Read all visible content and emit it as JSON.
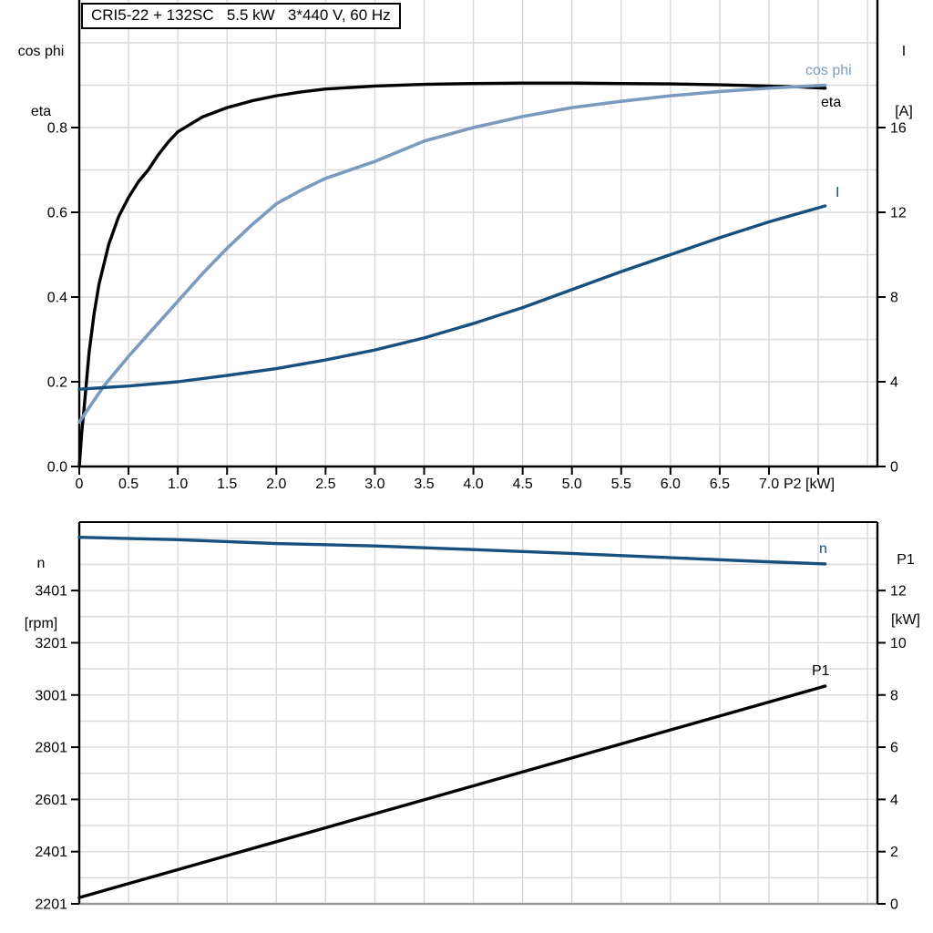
{
  "title": "CRI5-22 + 132SC   5.5 kW   3*440 V, 60 Hz",
  "colors": {
    "eta_curve": "#000000",
    "cos_phi_curve": "#7A9BBE",
    "current_curve": "#17507F",
    "speed_curve": "#17507F",
    "p1_curve": "#000000",
    "grid": "#d9d9d9",
    "axis": "#000000",
    "bottom_border": "#999999"
  },
  "top_chart": {
    "left_header": [
      "cos phi",
      "eta"
    ],
    "right_header": [
      "I",
      "[A]"
    ],
    "curve_labels": {
      "cos_phi": "cos phi",
      "eta": "eta",
      "current": "I"
    }
  },
  "bottom_chart": {
    "left_header": [
      "n",
      "[rpm]"
    ],
    "right_header": [
      "P1",
      "[kW]"
    ],
    "curve_labels": {
      "speed": "n",
      "p1": "P1"
    }
  },
  "chart_data": [
    {
      "id": "motor-electrical-curves",
      "type": "line",
      "title": "CRI5-22 + 132SC   5.5 kW   3*440 V, 60 Hz",
      "xlabel": "P2 [kW]",
      "xlim": [
        0,
        8.1
      ],
      "grid": true,
      "x_ticks": [
        {
          "v": 0,
          "label": "0"
        },
        {
          "v": 0.5,
          "label": "0.5"
        },
        {
          "v": 1.0,
          "label": "1.0"
        },
        {
          "v": 1.5,
          "label": "1.5"
        },
        {
          "v": 2.0,
          "label": "2.0"
        },
        {
          "v": 2.5,
          "label": "2.5"
        },
        {
          "v": 3.0,
          "label": "3.0"
        },
        {
          "v": 3.5,
          "label": "3.5"
        },
        {
          "v": 4.0,
          "label": "4.0"
        },
        {
          "v": 4.5,
          "label": "4.5"
        },
        {
          "v": 5.0,
          "label": "5.0"
        },
        {
          "v": 5.5,
          "label": "5.5"
        },
        {
          "v": 6.0,
          "label": "6.0"
        },
        {
          "v": 6.5,
          "label": "6.5"
        },
        {
          "v": 7.0,
          "label": "7.0"
        },
        {
          "v": 7.5,
          "label": ""
        }
      ],
      "left_axis": {
        "label": "cos phi / eta",
        "range_shown": [
          0.0,
          1.1
        ],
        "minor_grid_step": 0.1,
        "ticks": [
          {
            "v": 0.0,
            "label": "0.0"
          },
          {
            "v": 0.2,
            "label": "0.2"
          },
          {
            "v": 0.4,
            "label": "0.4"
          },
          {
            "v": 0.6,
            "label": "0.6"
          },
          {
            "v": 0.8,
            "label": "0.8"
          }
        ]
      },
      "right_axis": {
        "label": "I [A]",
        "range_shown": [
          0,
          22
        ],
        "ticks": [
          {
            "v": 0,
            "label": "0"
          },
          {
            "v": 4,
            "label": "4"
          },
          {
            "v": 8,
            "label": "8"
          },
          {
            "v": 12,
            "label": "12"
          },
          {
            "v": 16,
            "label": "16"
          }
        ]
      },
      "series": [
        {
          "name": "eta",
          "label": "eta",
          "axis": "left",
          "color": "#000000",
          "width": 3.4,
          "points": [
            [
              0,
              0
            ],
            [
              0.025,
              0.08
            ],
            [
              0.05,
              0.14
            ],
            [
              0.1,
              0.27
            ],
            [
              0.15,
              0.36
            ],
            [
              0.2,
              0.43
            ],
            [
              0.3,
              0.525
            ],
            [
              0.4,
              0.59
            ],
            [
              0.5,
              0.635
            ],
            [
              0.6,
              0.672
            ],
            [
              0.7,
              0.7
            ],
            [
              0.8,
              0.735
            ],
            [
              0.9,
              0.765
            ],
            [
              1.0,
              0.79
            ],
            [
              1.25,
              0.825
            ],
            [
              1.5,
              0.847
            ],
            [
              1.75,
              0.863
            ],
            [
              2.0,
              0.875
            ],
            [
              2.25,
              0.884
            ],
            [
              2.5,
              0.891
            ],
            [
              3.0,
              0.898
            ],
            [
              3.5,
              0.902
            ],
            [
              4.0,
              0.904
            ],
            [
              4.5,
              0.905
            ],
            [
              5.0,
              0.905
            ],
            [
              5.5,
              0.904
            ],
            [
              6.0,
              0.903
            ],
            [
              6.5,
              0.901
            ],
            [
              7.0,
              0.898
            ],
            [
              7.3,
              0.896
            ],
            [
              7.57,
              0.893
            ]
          ]
        },
        {
          "name": "cos phi",
          "label": "cos phi",
          "axis": "left",
          "color": "#7A9BBE",
          "width": 3.6,
          "points": [
            [
              0,
              0.105
            ],
            [
              0.25,
              0.19
            ],
            [
              0.5,
              0.26
            ],
            [
              0.75,
              0.325
            ],
            [
              1.0,
              0.39
            ],
            [
              1.25,
              0.455
            ],
            [
              1.5,
              0.515
            ],
            [
              1.75,
              0.57
            ],
            [
              2.0,
              0.62
            ],
            [
              2.25,
              0.652
            ],
            [
              2.5,
              0.68
            ],
            [
              2.75,
              0.7
            ],
            [
              3.0,
              0.72
            ],
            [
              3.5,
              0.768
            ],
            [
              4.0,
              0.8
            ],
            [
              4.5,
              0.826
            ],
            [
              5.0,
              0.847
            ],
            [
              5.5,
              0.862
            ],
            [
              6.0,
              0.875
            ],
            [
              6.5,
              0.885
            ],
            [
              7.0,
              0.893
            ],
            [
              7.57,
              0.9
            ]
          ]
        },
        {
          "name": "I",
          "label": "I",
          "axis": "right",
          "color": "#17507F",
          "width": 3.4,
          "points": [
            [
              0,
              3.65
            ],
            [
              0.5,
              3.8
            ],
            [
              1.0,
              4.0
            ],
            [
              1.5,
              4.3
            ],
            [
              2.0,
              4.62
            ],
            [
              2.5,
              5.03
            ],
            [
              3.0,
              5.5
            ],
            [
              3.5,
              6.07
            ],
            [
              4.0,
              6.75
            ],
            [
              4.5,
              7.5
            ],
            [
              5.0,
              8.35
            ],
            [
              5.5,
              9.2
            ],
            [
              6.0,
              10.0
            ],
            [
              6.5,
              10.8
            ],
            [
              7.0,
              11.55
            ],
            [
              7.57,
              12.3
            ]
          ]
        }
      ]
    },
    {
      "id": "speed-power-curves",
      "type": "line",
      "xlabel": "",
      "xlim": [
        0,
        8.1
      ],
      "grid": true,
      "left_axis": {
        "label": "n [rpm]",
        "range_shown": [
          2201,
          3665
        ],
        "minor_grid_step": 100,
        "ticks": [
          {
            "v": 2201,
            "label": "2201"
          },
          {
            "v": 2401,
            "label": "2401"
          },
          {
            "v": 2601,
            "label": "2601"
          },
          {
            "v": 2801,
            "label": "2801"
          },
          {
            "v": 3001,
            "label": "3001"
          },
          {
            "v": 3201,
            "label": "3201"
          },
          {
            "v": 3401,
            "label": "3401"
          }
        ]
      },
      "right_axis": {
        "label": "P1 [kW]",
        "range_shown": [
          0,
          14.6
        ],
        "ticks": [
          {
            "v": 0,
            "label": "0"
          },
          {
            "v": 2,
            "label": "2"
          },
          {
            "v": 4,
            "label": "4"
          },
          {
            "v": 6,
            "label": "6"
          },
          {
            "v": 8,
            "label": "8"
          },
          {
            "v": 10,
            "label": "10"
          },
          {
            "v": 12,
            "label": "12"
          }
        ]
      },
      "series": [
        {
          "name": "n",
          "label": "n",
          "axis": "left",
          "color": "#17507F",
          "width": 3.4,
          "points": [
            [
              0,
              3605
            ],
            [
              1,
              3596
            ],
            [
              2,
              3581
            ],
            [
              3,
              3572
            ],
            [
              4,
              3558
            ],
            [
              5,
              3543
            ],
            [
              6,
              3527
            ],
            [
              7,
              3511
            ],
            [
              7.57,
              3503
            ]
          ]
        },
        {
          "name": "P1",
          "label": "P1",
          "axis": "right",
          "color": "#000000",
          "width": 3.4,
          "points": [
            [
              0,
              0.24
            ],
            [
              2,
              2.38
            ],
            [
              4,
              4.52
            ],
            [
              6,
              6.66
            ],
            [
              7.57,
              8.34
            ]
          ]
        }
      ]
    }
  ]
}
